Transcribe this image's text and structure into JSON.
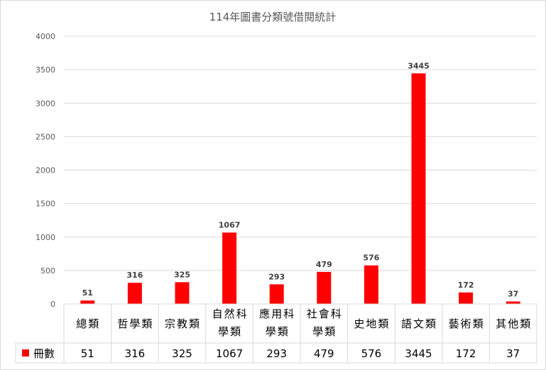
{
  "chart_data": {
    "type": "bar",
    "title": "114年圖書分類號借閱統計",
    "categories": [
      [
        "總類"
      ],
      [
        "哲學類"
      ],
      [
        "宗教類"
      ],
      [
        "自然科",
        "學類"
      ],
      [
        "應用科",
        "學類"
      ],
      [
        "社會科",
        "學類"
      ],
      [
        "史地類"
      ],
      [
        "語文類"
      ],
      [
        "藝術類"
      ],
      [
        "其他類"
      ]
    ],
    "series": [
      {
        "name": "冊數",
        "values": [
          51,
          316,
          325,
          1067,
          293,
          479,
          576,
          3445,
          172,
          37
        ],
        "color": "#ff0000"
      }
    ],
    "ylim": [
      0,
      4000
    ],
    "yticks": [
      0,
      500,
      1000,
      1500,
      2000,
      2500,
      3000,
      3500,
      4000
    ],
    "grid": true,
    "data_table": true,
    "legend": "data-table-left"
  }
}
